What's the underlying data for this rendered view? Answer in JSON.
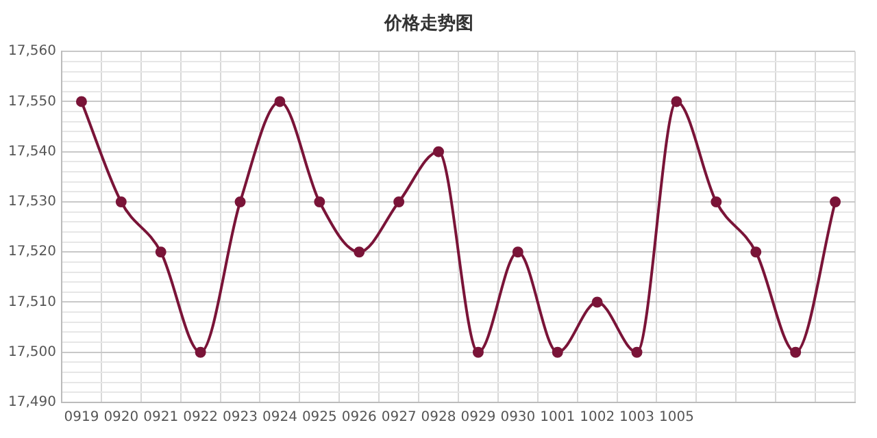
{
  "chart_data": {
    "type": "line",
    "title": "价格走势图",
    "categories": [
      "0919",
      "0920",
      "0921",
      "0922",
      "0923",
      "0924",
      "0925",
      "0926",
      "0927",
      "0928",
      "0929",
      "0930",
      "1001",
      "1002",
      "1003",
      "1005",
      null,
      null,
      null,
      null
    ],
    "series": [
      {
        "color": "#7a1438",
        "values": [
          17550,
          17530,
          17520,
          17500,
          17530,
          17550,
          17530,
          17520,
          17530,
          17540,
          17500,
          17520,
          17500,
          17510,
          17500,
          17550,
          17530,
          17520,
          17500,
          17530
        ]
      }
    ],
    "ylim": [
      17490,
      17560
    ],
    "yticks": [
      {
        "value": 17490,
        "label": "17,490"
      },
      {
        "value": 17492,
        "label": null
      },
      {
        "value": 17494,
        "label": null
      },
      {
        "value": 17496,
        "label": null
      },
      {
        "value": 17498,
        "label": null
      },
      {
        "value": 17500,
        "label": "17,500"
      },
      {
        "value": 17502,
        "label": null
      },
      {
        "value": 17504,
        "label": null
      },
      {
        "value": 17506,
        "label": null
      },
      {
        "value": 17508,
        "label": null
      },
      {
        "value": 17510,
        "label": "17,510"
      },
      {
        "value": 17512,
        "label": null
      },
      {
        "value": 17514,
        "label": null
      },
      {
        "value": 17516,
        "label": null
      },
      {
        "value": 17518,
        "label": null
      },
      {
        "value": 17520,
        "label": "17,520"
      },
      {
        "value": 17522,
        "label": null
      },
      {
        "value": 17524,
        "label": null
      },
      {
        "value": 17526,
        "label": null
      },
      {
        "value": 17528,
        "label": null
      },
      {
        "value": 17530,
        "label": "17,530"
      },
      {
        "value": 17532,
        "label": null
      },
      {
        "value": 17534,
        "label": null
      },
      {
        "value": 17536,
        "label": null
      },
      {
        "value": 17538,
        "label": null
      },
      {
        "value": 17540,
        "label": "17,540"
      },
      {
        "value": 17542,
        "label": null
      },
      {
        "value": 17544,
        "label": null
      },
      {
        "value": 17546,
        "label": null
      },
      {
        "value": 17548,
        "label": null
      },
      {
        "value": 17550,
        "label": "17,550"
      },
      {
        "value": 17552,
        "label": null
      },
      {
        "value": 17554,
        "label": null
      },
      {
        "value": 17556,
        "label": null
      },
      {
        "value": 17558,
        "label": null
      },
      {
        "value": 17560,
        "label": "17,560"
      }
    ],
    "grid": true,
    "legend": false,
    "marker": "circle",
    "line_style": "solid"
  }
}
